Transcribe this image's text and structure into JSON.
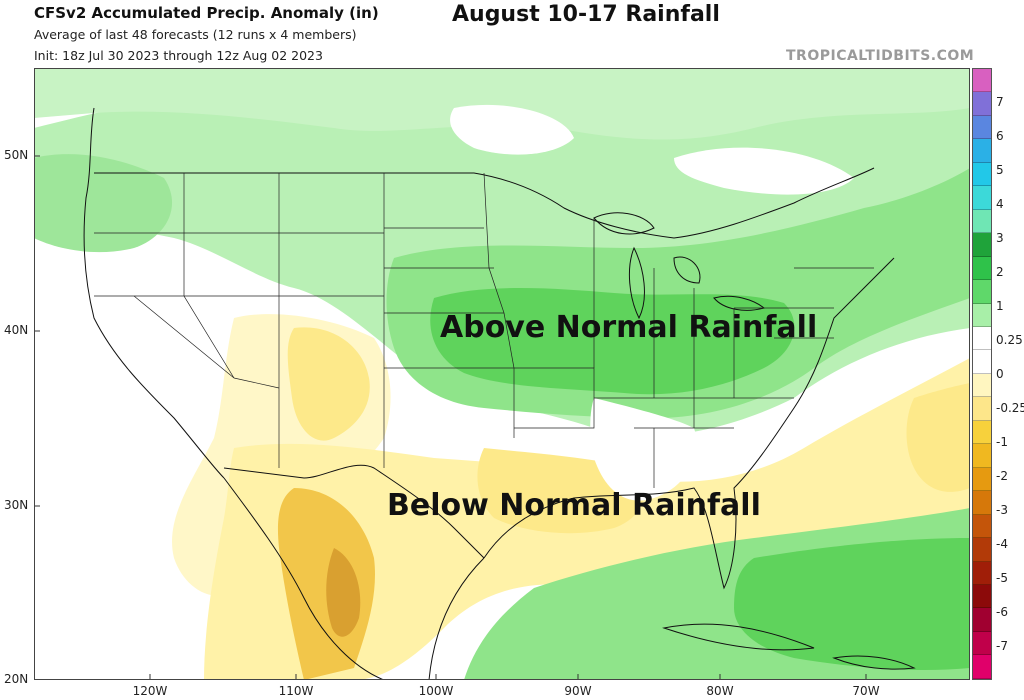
{
  "header": {
    "title": "CFSv2 Accumulated Precip. Anomaly (in)",
    "subtitle1": "Average of last 48 forecasts (12 runs x 4 members)",
    "subtitle2": "Init: 18z Jul 30 2023 through 12z Aug 02 2023",
    "headline": "August 10-17 Rainfall",
    "watermark": "TROPICALTIDBITS.COM"
  },
  "annotations": {
    "above": "Above Normal Rainfall",
    "below": "Below Normal Rainfall"
  },
  "lat_labels": [
    "50N",
    "40N",
    "30N",
    "20N"
  ],
  "lon_labels": [
    "120W",
    "110W",
    "100W",
    "90W",
    "80W",
    "70W"
  ],
  "colorbar": {
    "labels": [
      "7",
      "6",
      "5",
      "4",
      "3",
      "2",
      "1",
      "0.25",
      "0",
      "-0.25",
      "-1",
      "-2",
      "-3",
      "-4",
      "-5",
      "-6",
      "-7"
    ],
    "colors": [
      "#d860c0",
      "#8070d8",
      "#5a86e0",
      "#2bb0e6",
      "#22c8e8",
      "#3cd9d9",
      "#6fe6b4",
      "#1fa33a",
      "#2fc24a",
      "#5fd86a",
      "#a8efa8",
      "#ffffff",
      "#ffffff",
      "#fff6c0",
      "#fde68a",
      "#f7d13c",
      "#f0b820",
      "#e69a10",
      "#d6780a",
      "#c4550a",
      "#b23a08",
      "#a01e08",
      "#8c0a0a",
      "#a00030",
      "#c0004a",
      "#e0006a"
    ]
  },
  "colors": {
    "green_light": "#b9f0b5",
    "green_mid": "#8fe48a",
    "green_dark": "#5fd35c",
    "yellow_light": "#fff7c8",
    "yellow_mid": "#fde98a",
    "orange": "#f2c64a",
    "orange_dark": "#d9a030"
  }
}
